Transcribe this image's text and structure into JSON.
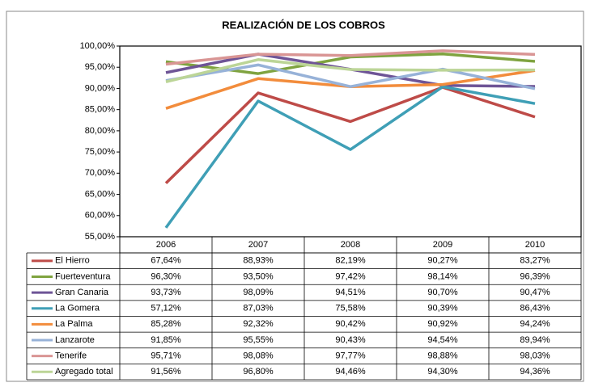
{
  "chart_data": {
    "type": "line",
    "title": "REALIZACIÓN DE LOS COBROS",
    "categories": [
      "2006",
      "2007",
      "2008",
      "2009",
      "2010"
    ],
    "ylim": [
      55,
      100
    ],
    "yticks": [
      {
        "value": 55,
        "label": "55,00%"
      },
      {
        "value": 60,
        "label": "60,00%"
      },
      {
        "value": 65,
        "label": "65,00%"
      },
      {
        "value": 70,
        "label": "70,00%"
      },
      {
        "value": 75,
        "label": "75,00%"
      },
      {
        "value": 80,
        "label": "80,00%"
      },
      {
        "value": 85,
        "label": "85,00%"
      },
      {
        "value": 90,
        "label": "90,00%"
      },
      {
        "value": 95,
        "label": "95,00%"
      },
      {
        "value": 100,
        "label": "100,00%"
      }
    ],
    "grid": false,
    "series": [
      {
        "name": "El Hierro",
        "color": "#be4b48",
        "values": [
          67.64,
          88.93,
          82.19,
          90.27,
          83.27
        ],
        "value_labels": [
          "67,64%",
          "88,93%",
          "82,19%",
          "90,27%",
          "83,27%"
        ]
      },
      {
        "name": "Fuerteventura",
        "color": "#7fa33f",
        "values": [
          96.3,
          93.5,
          97.42,
          98.14,
          96.39
        ],
        "value_labels": [
          "96,30%",
          "93,50%",
          "97,42%",
          "98,14%",
          "96,39%"
        ]
      },
      {
        "name": "Gran Canaria",
        "color": "#6e5496",
        "values": [
          93.73,
          98.09,
          94.51,
          90.7,
          90.47
        ],
        "value_labels": [
          "93,73%",
          "98,09%",
          "94,51%",
          "90,70%",
          "90,47%"
        ]
      },
      {
        "name": "La Gomera",
        "color": "#3f9fb6",
        "values": [
          57.12,
          87.03,
          75.58,
          90.39,
          86.43
        ],
        "value_labels": [
          "57,12%",
          "87,03%",
          "75,58%",
          "90,39%",
          "86,43%"
        ]
      },
      {
        "name": "La Palma",
        "color": "#f28c3c",
        "values": [
          85.28,
          92.32,
          90.42,
          90.92,
          94.24
        ],
        "value_labels": [
          "85,28%",
          "92,32%",
          "90,42%",
          "90,92%",
          "94,24%"
        ]
      },
      {
        "name": "Lanzarote",
        "color": "#97b2d8",
        "values": [
          91.85,
          95.55,
          90.43,
          94.54,
          89.94
        ],
        "value_labels": [
          "91,85%",
          "95,55%",
          "90,43%",
          "94,54%",
          "89,94%"
        ]
      },
      {
        "name": "Tenerife",
        "color": "#d99594",
        "values": [
          95.71,
          98.08,
          97.77,
          98.88,
          98.03
        ],
        "value_labels": [
          "95,71%",
          "98,08%",
          "97,77%",
          "98,88%",
          "98,03%"
        ]
      },
      {
        "name": "Agregado total",
        "color": "#bcd597",
        "values": [
          91.56,
          96.8,
          94.46,
          94.3,
          94.36
        ],
        "value_labels": [
          "91,56%",
          "96,80%",
          "94,46%",
          "94,30%",
          "94,36%"
        ]
      }
    ]
  }
}
